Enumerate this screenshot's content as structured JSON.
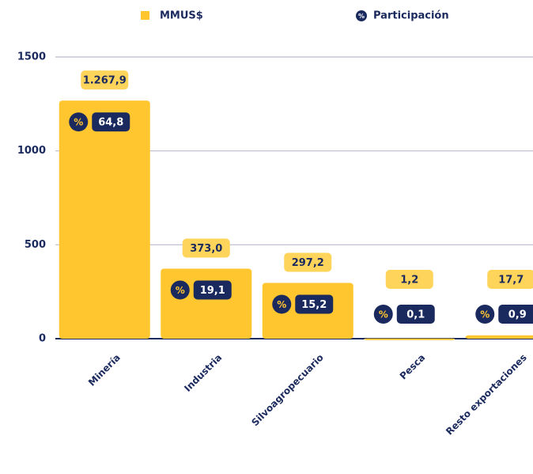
{
  "chart_data": {
    "type": "bar",
    "categories": [
      "Minería",
      "Industria",
      "Silvoagropecuario",
      "Pesca",
      "Resto exportaciones"
    ],
    "series": [
      {
        "name": "MMUS$",
        "color": "#FFC62F",
        "values": [
          1267.9,
          373.0,
          297.2,
          1.2,
          17.7
        ],
        "value_labels": [
          "1.267,9",
          "373,0",
          "297,2",
          "1,2",
          "17,7"
        ]
      },
      {
        "name": "Participación",
        "color": "#1B2A5E",
        "values": [
          64.8,
          19.1,
          15.2,
          0.1,
          0.9
        ],
        "value_labels": [
          "64,8",
          "19,1",
          "15,2",
          "0,1",
          "0,9"
        ]
      }
    ],
    "participation_icon": "%",
    "ylim": [
      0,
      1500
    ],
    "yticks": [
      0,
      500,
      1000,
      1500
    ],
    "grid": true
  }
}
